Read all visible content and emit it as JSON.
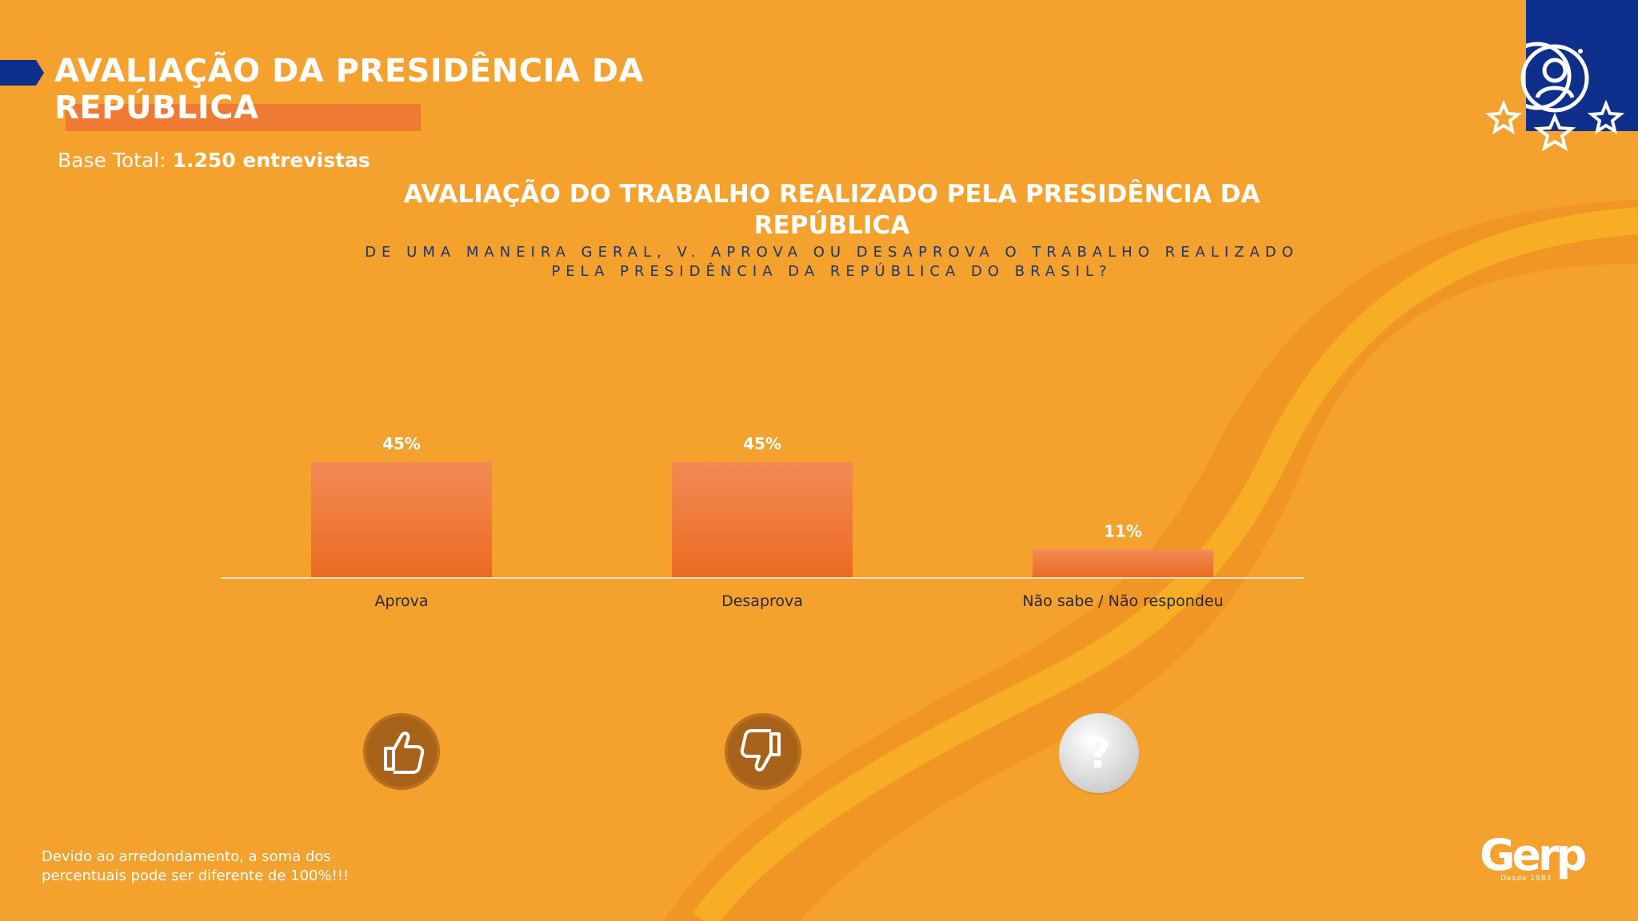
{
  "header": {
    "title": "AVALIAÇÃO DA PRESIDÊNCIA DA REPÚBLICA",
    "base_label": "Base Total:",
    "base_value": "1.250 entrevistas"
  },
  "chart_data": {
    "type": "bar",
    "title": "AVALIAÇÃO DO TRABALHO REALIZADO PELA PRESIDÊNCIA DA REPÚBLICA",
    "subtitle": "DE UMA MANEIRA GERAL, V. APROVA OU DESAPROVA O TRABALHO REALIZADO PELA PRESIDÊNCIA DA REPÚBLICA DO BRASIL?",
    "categories": [
      "Aprova",
      "Desaprova",
      "Não sabe / Não respondeu"
    ],
    "values": [
      45,
      45,
      11
    ],
    "value_labels": [
      "45%",
      "45%",
      "11%"
    ],
    "unit": "%",
    "xlabel": "",
    "ylabel": "",
    "ylim": [
      0,
      100
    ],
    "grid": false,
    "legend": "none"
  },
  "icons": [
    "thumbs-up-icon",
    "thumbs-down-icon",
    "question-icon"
  ],
  "colors": {
    "background": "#F4A12E",
    "bar_top": "#F28B55",
    "bar_bottom": "#EC6A21",
    "corner": "#0F2F8C",
    "subtitle": "#1F3566"
  },
  "footnote": "Devido ao arredondamento, a soma dos percentuais pode ser diferente de 100%!!!",
  "logo": {
    "name": "Gerp",
    "tagline": "Desde 1983"
  }
}
